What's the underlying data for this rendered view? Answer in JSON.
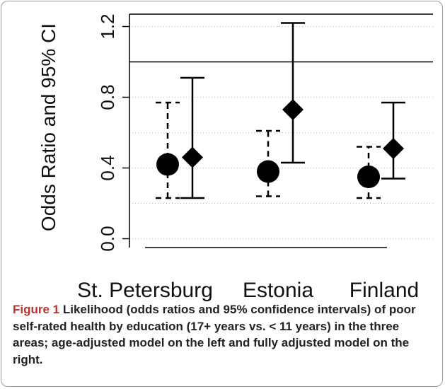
{
  "chart_data": {
    "type": "errorbar",
    "y_label": "Odds Ratio and 95% CI",
    "categories": [
      "St. Petersburg",
      "Estonia",
      "Finland"
    ],
    "ylim": [
      -0.05,
      1.27
    ],
    "yticks": [
      {
        "value": 0,
        "label": "0.0"
      },
      0.4,
      0.8,
      1.2
    ],
    "grid_values": [
      0,
      0.2,
      0.4,
      0.6,
      0.8,
      1.2
    ],
    "reference_line": 1.0,
    "series": [
      {
        "marker": "circle",
        "line_style": "dashed",
        "color": "#000000",
        "values": [
          0.42,
          0.38,
          0.35
        ],
        "lower": [
          0.23,
          0.24,
          0.23
        ],
        "upper": [
          0.77,
          0.61,
          0.52
        ]
      },
      {
        "marker": "diamond",
        "line_style": "solid",
        "color": "#000000",
        "values": [
          0.46,
          0.73,
          0.51
        ],
        "lower": [
          0.23,
          0.43,
          0.34
        ],
        "upper": [
          0.91,
          1.22,
          0.77
        ]
      }
    ],
    "caption_label": "Figure 1",
    "caption": "Likelihood (odds ratios and 95% confidence intervals) of poor self-rated health by education (17+ years vs. < 11 years) in the three areas; age-adjusted model on the left and fully adjusted model on the right."
  }
}
